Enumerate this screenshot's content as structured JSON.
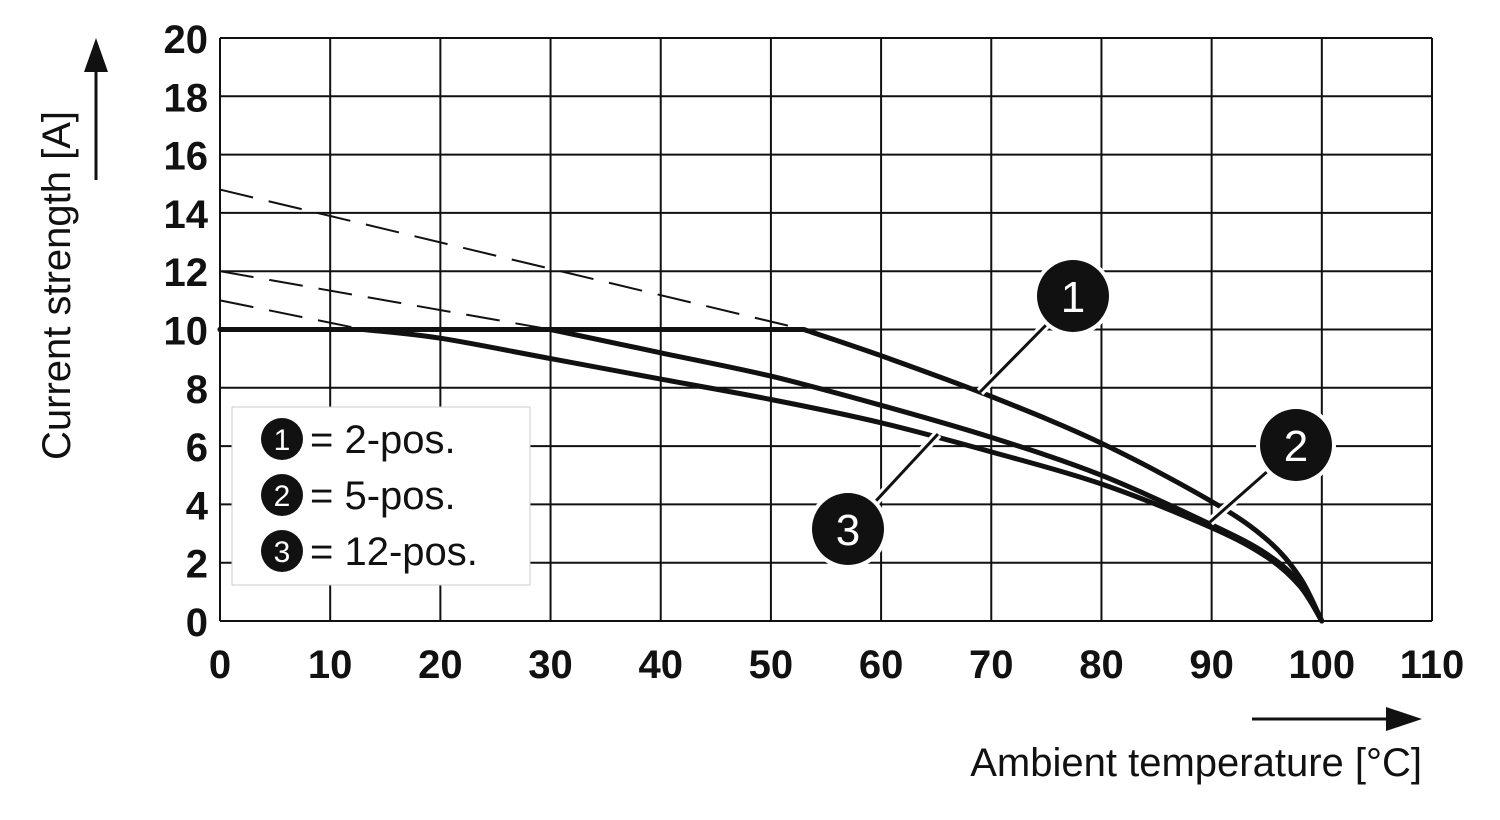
{
  "chart_data": {
    "type": "line",
    "xlabel": "Ambient temperature [°C]",
    "ylabel": "Current strength [A]",
    "xlim": [
      0,
      110
    ],
    "ylim": [
      0,
      20
    ],
    "xticks": [
      0,
      10,
      20,
      30,
      40,
      50,
      60,
      70,
      80,
      90,
      100,
      110
    ],
    "yticks": [
      0,
      2,
      4,
      6,
      8,
      10,
      12,
      14,
      16,
      18,
      20
    ],
    "grid": true,
    "legend_position": "bottom-left",
    "line_color": "#111111",
    "cap": 10,
    "series": [
      {
        "name": "2-pos.",
        "marker": "1",
        "dashed_extrapolation": {
          "x": [
            0,
            53
          ],
          "y": [
            14.8,
            10
          ]
        },
        "x": [
          0,
          53,
          60,
          70,
          80,
          90,
          95,
          98,
          100
        ],
        "y": [
          10,
          10,
          9.1,
          7.7,
          6.1,
          4.1,
          2.8,
          1.5,
          0
        ]
      },
      {
        "name": "5-pos.",
        "marker": "2",
        "dashed_extrapolation": {
          "x": [
            0,
            30
          ],
          "y": [
            12,
            10
          ]
        },
        "x": [
          0,
          30,
          40,
          50,
          60,
          70,
          80,
          90,
          95,
          98,
          100
        ],
        "y": [
          10,
          10,
          9.2,
          8.4,
          7.4,
          6.3,
          5.0,
          3.3,
          2.3,
          1.3,
          0
        ]
      },
      {
        "name": "12-pos.",
        "marker": "3",
        "dashed_extrapolation": {
          "x": [
            0,
            13
          ],
          "y": [
            11,
            10
          ]
        },
        "x": [
          0,
          13,
          20,
          30,
          40,
          50,
          60,
          70,
          80,
          90,
          95,
          98,
          100
        ],
        "y": [
          10,
          10,
          9.7,
          9.0,
          8.3,
          7.6,
          6.8,
          5.8,
          4.7,
          3.2,
          2.2,
          1.2,
          0
        ]
      }
    ],
    "legend": [
      {
        "marker": "1",
        "text": "= 2-pos."
      },
      {
        "marker": "2",
        "text": "= 5-pos."
      },
      {
        "marker": "3",
        "text": "= 12-pos."
      }
    ]
  }
}
